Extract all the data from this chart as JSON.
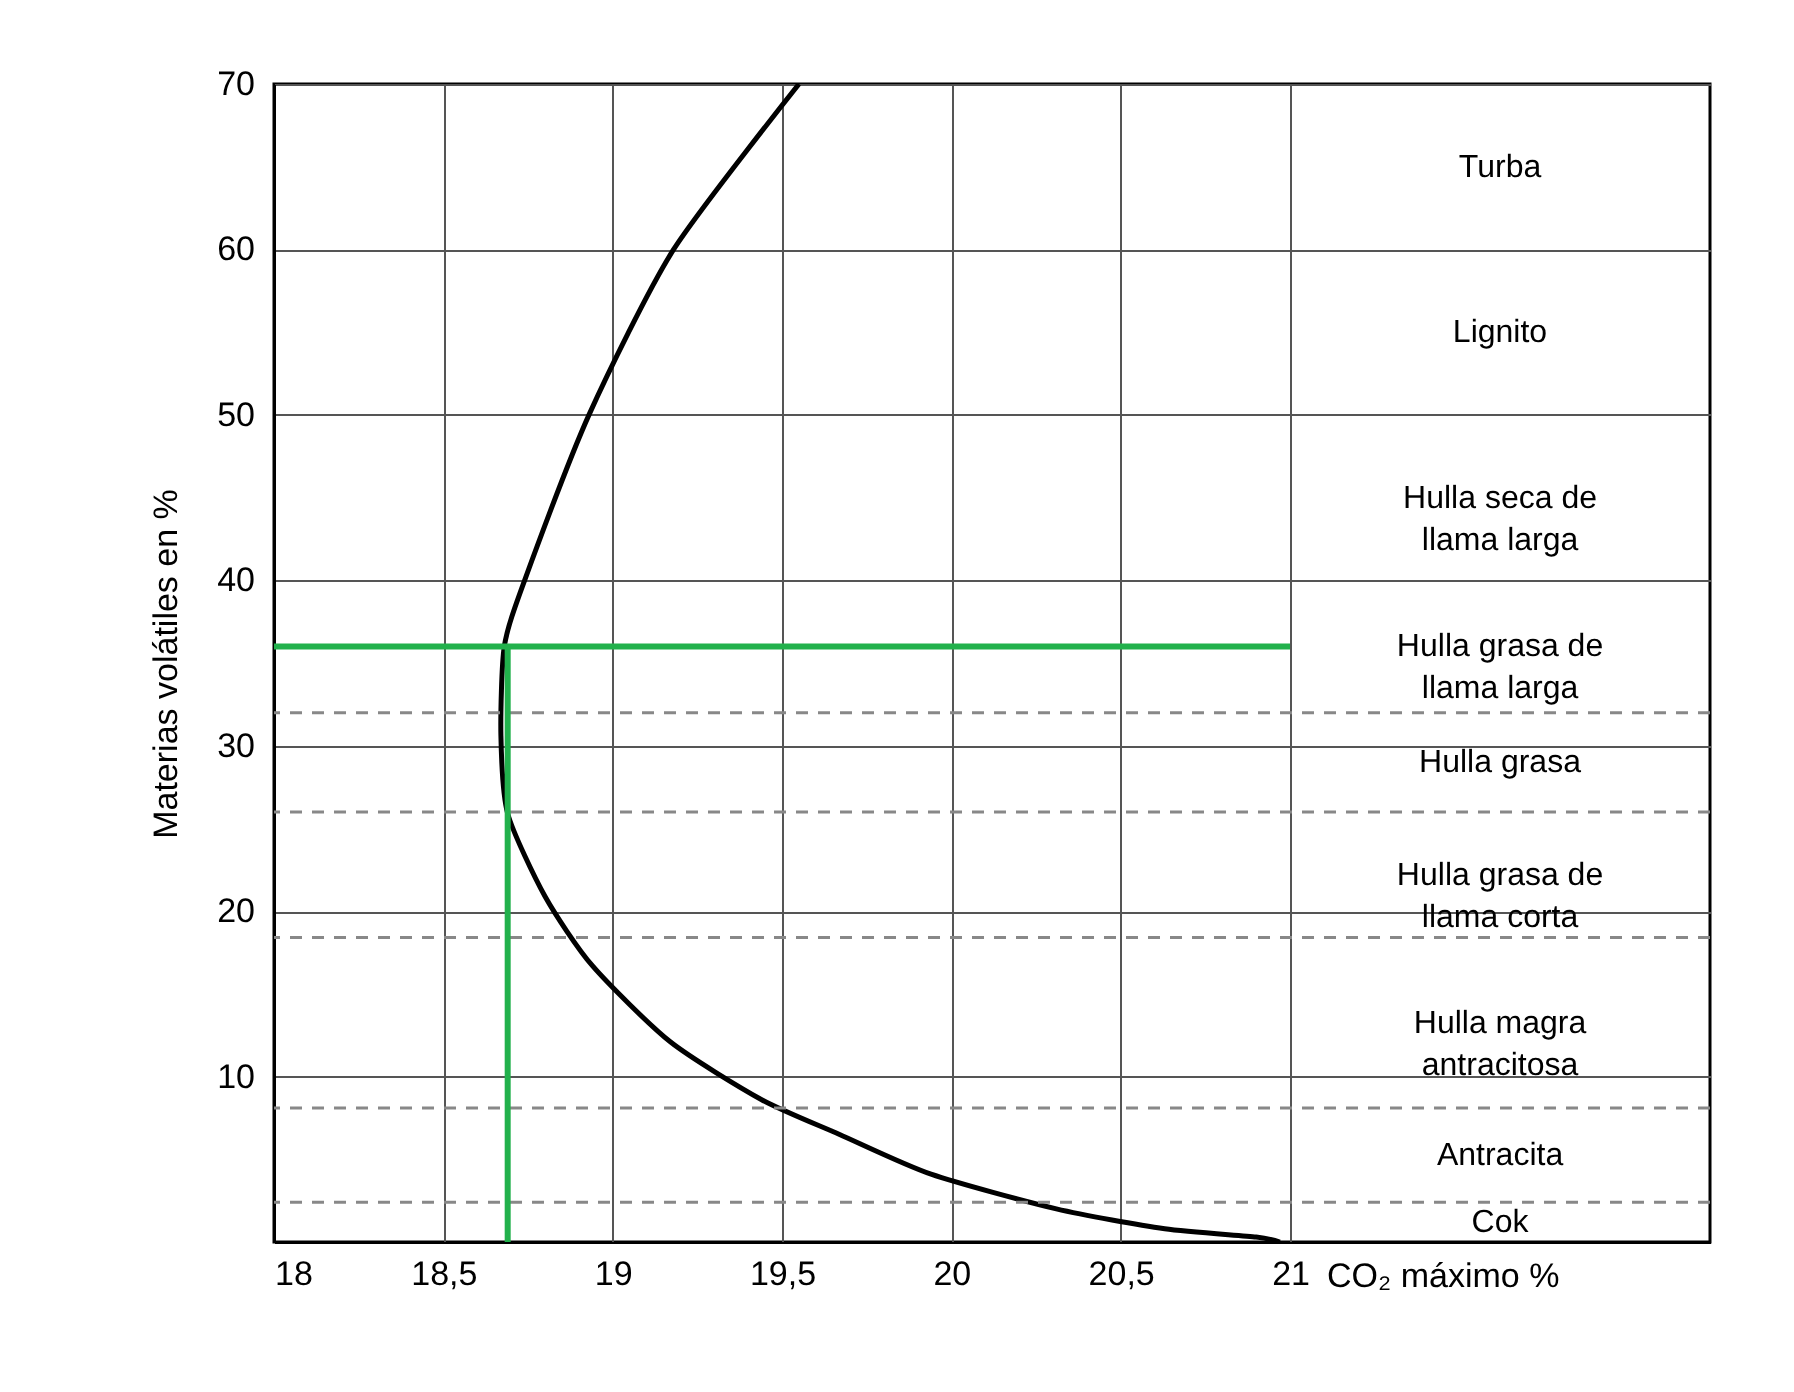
{
  "chart_data": {
    "type": "line",
    "xlabel": "CO₂ máximo %",
    "ylabel": "Materias volátiles en %",
    "xlim": [
      18,
      22.24
    ],
    "ylim": [
      0,
      70
    ],
    "xticks": [
      18,
      {
        "value": 18.5,
        "label": "18,5"
      },
      19,
      {
        "value": 19.5,
        "label": "19,5"
      },
      20,
      {
        "value": 20.5,
        "label": "20,5"
      },
      21
    ],
    "yticks": [
      10,
      20,
      30,
      40,
      50,
      60,
      70
    ],
    "grid": true,
    "line_style": "solid",
    "marker": "none",
    "series": [
      {
        "color": "#000000",
        "x": [
          19.55,
          19.18,
          18.93,
          18.74,
          18.68,
          18.67,
          18.69,
          18.8,
          18.94,
          19.17,
          19.44,
          19.67,
          19.94,
          20.31,
          20.63,
          20.9,
          20.97
        ],
        "values": [
          70,
          60,
          50,
          40,
          36,
          30.6,
          25.9,
          20.9,
          16.7,
          12.1,
          8.6,
          6.5,
          4.1,
          2.0,
          0.8,
          0.3,
          0
        ]
      },
      {
        "color": "#22b14c",
        "x": [
          18.69,
          18.69
        ],
        "values": [
          0,
          36
        ]
      },
      {
        "color": "#22b14c",
        "x": [
          18,
          21
        ],
        "values": [
          36,
          36
        ]
      }
    ],
    "ref_lines": [
      {
        "axis": "y",
        "value": 32,
        "color": "#888888",
        "line_style": "dashed"
      },
      {
        "axis": "y",
        "value": 26,
        "color": "#888888",
        "line_style": "dashed"
      },
      {
        "axis": "y",
        "value": 18.4,
        "color": "#888888",
        "line_style": "dashed"
      },
      {
        "axis": "y",
        "value": 8.1,
        "color": "#888888",
        "line_style": "dashed"
      },
      {
        "axis": "y",
        "value": 2.4,
        "color": "#888888",
        "line_style": "dashed"
      }
    ],
    "annotations": [
      "Turba",
      "Lignito",
      "Hulla seca de\nllama larga",
      "Hulla grasa de\nllama larga",
      "Hulla grasa",
      "Hulla grasa de\nllama corta",
      "Hulla magra\nantracitosa",
      "Antracita",
      "Cok"
    ]
  }
}
